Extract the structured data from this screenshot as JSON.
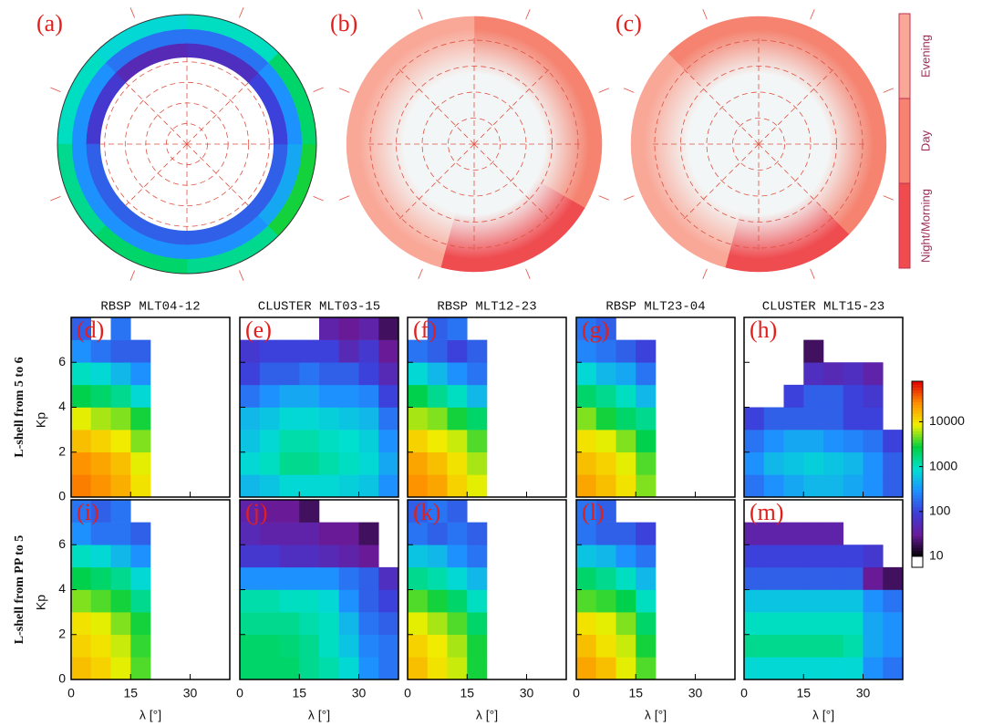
{
  "chart_data": [
    {
      "type": "polar-ring",
      "label": "(a)",
      "values": [
        [
          150,
          300,
          1500
        ],
        [
          150,
          400,
          3000
        ],
        [
          100,
          300,
          2000
        ],
        [
          60,
          200,
          1000
        ],
        [
          50,
          200,
          800
        ],
        [
          80,
          300,
          1000
        ],
        [
          150,
          300,
          1500
        ],
        [
          150,
          300,
          2000
        ]
      ]
    },
    {
      "type": "polar-region",
      "label": "(b)",
      "sectors": [
        {
          "name": "Day",
          "mlt": [
            4,
            12
          ]
        },
        {
          "name": "Evening",
          "mlt": [
            12,
            23
          ]
        },
        {
          "name": "Night/Morning",
          "mlt": [
            23,
            4
          ]
        }
      ]
    },
    {
      "type": "polar-region",
      "label": "(c)",
      "sectors": [
        {
          "name": "Day",
          "mlt": [
            3,
            15
          ]
        },
        {
          "name": "Evening",
          "mlt": [
            15,
            23
          ]
        },
        {
          "name": "Night/Morning",
          "mlt": [
            23,
            3
          ]
        }
      ]
    },
    {
      "type": "category-bar",
      "categories": [
        "Evening",
        "Day",
        "Night/Morning"
      ],
      "colors": [
        "#f9a898",
        "#f58370",
        "#ef4c50"
      ]
    },
    {
      "type": "heatmap",
      "label": "(d)",
      "title": "RBSP MLT04-12",
      "row_label": "L-shell from 5 to 6",
      "ylabel": "Kp",
      "x_bins": [
        0,
        5,
        10,
        15,
        20,
        25,
        30,
        35,
        40
      ],
      "y_bins": [
        0,
        1,
        2,
        3,
        4,
        5,
        6,
        7,
        8
      ],
      "xlim": [
        0,
        40
      ],
      "ylim": [
        0,
        8
      ],
      "xticks": [
        0,
        15,
        30
      ],
      "yticks": [
        0,
        2,
        4,
        6
      ],
      "values": [
        [
          30000,
          25000,
          18000,
          10000,
          null,
          null,
          null,
          null
        ],
        [
          25000,
          20000,
          15000,
          8000,
          null,
          null,
          null,
          null
        ],
        [
          15000,
          12000,
          9000,
          5000,
          null,
          null,
          null,
          null
        ],
        [
          8000,
          6000,
          5000,
          3000,
          null,
          null,
          null,
          null
        ],
        [
          2500,
          2000,
          1500,
          800,
          null,
          null,
          null,
          null
        ],
        [
          1000,
          800,
          500,
          300,
          null,
          null,
          null,
          null
        ],
        [
          300,
          200,
          150,
          150,
          null,
          null,
          null,
          null
        ],
        [
          150,
          null,
          200,
          null,
          null,
          null,
          null,
          null
        ]
      ]
    },
    {
      "type": "heatmap",
      "label": "(e)",
      "title": "CLUSTER MLT03-15",
      "x_bins": [
        0,
        5,
        10,
        15,
        20,
        25,
        30,
        35,
        40
      ],
      "y_bins": [
        0,
        1,
        2,
        3,
        4,
        5,
        6,
        7,
        8
      ],
      "xlim": [
        0,
        40
      ],
      "ylim": [
        0,
        8
      ],
      "xticks": [
        0,
        15,
        30
      ],
      "yticks": [
        0,
        2,
        4,
        6
      ],
      "values": [
        [
          500,
          600,
          800,
          800,
          800,
          700,
          600,
          300
        ],
        [
          800,
          1000,
          1500,
          1500,
          1200,
          1000,
          800,
          400
        ],
        [
          600,
          800,
          1200,
          1200,
          1000,
          900,
          700,
          300
        ],
        [
          500,
          600,
          800,
          800,
          700,
          600,
          500,
          200
        ],
        [
          200,
          300,
          400,
          400,
          300,
          300,
          250,
          100
        ],
        [
          100,
          150,
          150,
          200,
          150,
          150,
          100,
          50
        ],
        [
          80,
          100,
          100,
          100,
          100,
          50,
          80,
          30
        ],
        [
          null,
          null,
          null,
          null,
          40,
          30,
          40,
          20
        ]
      ]
    },
    {
      "type": "heatmap",
      "label": "(f)",
      "title": "RBSP MLT12-23",
      "x_bins": [
        0,
        5,
        10,
        15,
        20,
        25,
        30,
        35,
        40
      ],
      "y_bins": [
        0,
        1,
        2,
        3,
        4,
        5,
        6,
        7,
        8
      ],
      "xlim": [
        0,
        40
      ],
      "ylim": [
        0,
        8
      ],
      "xticks": [
        0,
        15,
        30
      ],
      "yticks": [
        0,
        2,
        4,
        6
      ],
      "values": [
        [
          25000,
          20000,
          12000,
          8000,
          null,
          null,
          null,
          null
        ],
        [
          20000,
          15000,
          10000,
          6000,
          null,
          null,
          null,
          null
        ],
        [
          12000,
          9000,
          7000,
          4000,
          null,
          null,
          null,
          null
        ],
        [
          6000,
          5000,
          3000,
          2000,
          null,
          null,
          null,
          null
        ],
        [
          2500,
          1500,
          1000,
          500,
          null,
          null,
          null,
          null
        ],
        [
          800,
          500,
          300,
          200,
          null,
          null,
          null,
          null
        ],
        [
          200,
          150,
          100,
          150,
          null,
          null,
          null,
          null
        ],
        [
          null,
          150,
          200,
          null,
          null,
          null,
          null,
          null
        ]
      ]
    },
    {
      "type": "heatmap",
      "label": "(g)",
      "title": "RBSP MLT23-04",
      "x_bins": [
        0,
        5,
        10,
        15,
        20,
        25,
        30,
        35,
        40
      ],
      "y_bins": [
        0,
        1,
        2,
        3,
        4,
        5,
        6,
        7,
        8
      ],
      "xlim": [
        0,
        40
      ],
      "ylim": [
        0,
        8
      ],
      "xticks": [
        0,
        15,
        30
      ],
      "yticks": [
        0,
        2,
        4,
        6
      ],
      "values": [
        [
          20000,
          15000,
          10000,
          5000,
          null,
          null,
          null,
          null
        ],
        [
          15000,
          12000,
          8000,
          4000,
          null,
          null,
          null,
          null
        ],
        [
          10000,
          8000,
          5000,
          2500,
          null,
          null,
          null,
          null
        ],
        [
          5000,
          3000,
          2000,
          1500,
          null,
          null,
          null,
          null
        ],
        [
          2000,
          1500,
          1000,
          500,
          null,
          null,
          null,
          null
        ],
        [
          800,
          500,
          400,
          200,
          null,
          null,
          null,
          null
        ],
        [
          250,
          200,
          150,
          100,
          null,
          null,
          null,
          null
        ],
        [
          200,
          150,
          null,
          null,
          null,
          null,
          null,
          null
        ]
      ]
    },
    {
      "type": "heatmap",
      "label": "(h)",
      "title": "CLUSTER MLT15-23",
      "x_bins": [
        0,
        5,
        10,
        15,
        20,
        25,
        30,
        35,
        40
      ],
      "y_bins": [
        0,
        1,
        2,
        3,
        4,
        5,
        6,
        7,
        8
      ],
      "xlim": [
        0,
        40
      ],
      "ylim": [
        0,
        8
      ],
      "xticks": [
        0,
        15,
        30
      ],
      "yticks": [
        0,
        2,
        4,
        6
      ],
      "values": [
        [
          200,
          300,
          400,
          500,
          500,
          400,
          300,
          150
        ],
        [
          300,
          500,
          600,
          700,
          600,
          500,
          300,
          150
        ],
        [
          200,
          300,
          400,
          400,
          300,
          250,
          200,
          100
        ],
        [
          100,
          150,
          150,
          150,
          150,
          100,
          100,
          null
        ],
        [
          null,
          null,
          100,
          150,
          150,
          100,
          80,
          null
        ],
        [
          null,
          null,
          null,
          60,
          50,
          60,
          40,
          null
        ],
        [
          null,
          null,
          null,
          20,
          null,
          null,
          null,
          null
        ],
        [
          null,
          null,
          null,
          null,
          null,
          null,
          null,
          null
        ]
      ]
    },
    {
      "type": "heatmap",
      "label": "(i)",
      "row_label": "L-shell from PP to 5",
      "ylabel": "Kp",
      "xlabel": "λ [°]",
      "x_bins": [
        0,
        5,
        10,
        15,
        20,
        25,
        30,
        35,
        40
      ],
      "y_bins": [
        0,
        1,
        2,
        3,
        4,
        5,
        6,
        7,
        8
      ],
      "xlim": [
        0,
        40
      ],
      "ylim": [
        0,
        8
      ],
      "xticks": [
        0,
        15,
        30
      ],
      "yticks": [
        0,
        2,
        4,
        6
      ],
      "values": [
        [
          15000,
          12000,
          8000,
          4000,
          null,
          null,
          null,
          null
        ],
        [
          12000,
          10000,
          7000,
          3500,
          null,
          null,
          null,
          null
        ],
        [
          10000,
          8000,
          5000,
          3000,
          null,
          null,
          null,
          null
        ],
        [
          5000,
          4000,
          3000,
          1500,
          null,
          null,
          null,
          null
        ],
        [
          2500,
          2000,
          1500,
          800,
          null,
          null,
          null,
          null
        ],
        [
          1000,
          800,
          500,
          300,
          null,
          null,
          null,
          null
        ],
        [
          300,
          200,
          200,
          150,
          null,
          null,
          null,
          null
        ],
        [
          200,
          150,
          200,
          null,
          null,
          null,
          null,
          null
        ]
      ]
    },
    {
      "type": "heatmap",
      "label": "(j)",
      "xlabel": "λ [°]",
      "x_bins": [
        0,
        5,
        10,
        15,
        20,
        25,
        30,
        35,
        40
      ],
      "y_bins": [
        0,
        1,
        2,
        3,
        4,
        5,
        6,
        7,
        8
      ],
      "xlim": [
        0,
        40
      ],
      "ylim": [
        0,
        8
      ],
      "xticks": [
        0,
        15,
        30
      ],
      "yticks": [
        0,
        2,
        4,
        6
      ],
      "values": [
        [
          2000,
          2000,
          2000,
          1500,
          1200,
          800,
          300,
          200
        ],
        [
          2000,
          2000,
          1800,
          1500,
          1000,
          600,
          250,
          200
        ],
        [
          1500,
          1500,
          1500,
          1200,
          1000,
          500,
          200,
          150
        ],
        [
          1200,
          1200,
          1000,
          1000,
          800,
          300,
          150,
          100
        ],
        [
          300,
          300,
          300,
          300,
          300,
          200,
          150,
          60
        ],
        [
          80,
          80,
          60,
          60,
          50,
          40,
          30,
          null
        ],
        [
          50,
          40,
          40,
          40,
          30,
          30,
          20,
          null
        ],
        [
          40,
          30,
          30,
          20,
          null,
          null,
          null,
          null
        ]
      ]
    },
    {
      "type": "heatmap",
      "label": "(k)",
      "xlabel": "λ [°]",
      "x_bins": [
        0,
        5,
        10,
        15,
        20,
        25,
        30,
        35,
        40
      ],
      "y_bins": [
        0,
        1,
        2,
        3,
        4,
        5,
        6,
        7,
        8
      ],
      "xlim": [
        0,
        40
      ],
      "ylim": [
        0,
        8
      ],
      "xticks": [
        0,
        15,
        30
      ],
      "yticks": [
        0,
        2,
        4,
        6
      ],
      "values": [
        [
          15000,
          10000,
          7000,
          3000,
          null,
          null,
          null,
          null
        ],
        [
          12000,
          9000,
          6000,
          3000,
          null,
          null,
          null,
          null
        ],
        [
          8000,
          6000,
          4000,
          2000,
          null,
          null,
          null,
          null
        ],
        [
          4000,
          3000,
          2000,
          1000,
          null,
          null,
          null,
          null
        ],
        [
          1500,
          1200,
          800,
          500,
          null,
          null,
          null,
          null
        ],
        [
          600,
          500,
          300,
          200,
          null,
          null,
          null,
          null
        ],
        [
          200,
          150,
          200,
          150,
          null,
          null,
          null,
          null
        ],
        [
          150,
          200,
          150,
          null,
          null,
          null,
          null,
          null
        ]
      ]
    },
    {
      "type": "heatmap",
      "label": "(l)",
      "xlabel": "λ [°]",
      "x_bins": [
        0,
        5,
        10,
        15,
        20,
        25,
        30,
        35,
        40
      ],
      "y_bins": [
        0,
        1,
        2,
        3,
        4,
        5,
        6,
        7,
        8
      ],
      "xlim": [
        0,
        40
      ],
      "ylim": [
        0,
        8
      ],
      "xticks": [
        0,
        15,
        30
      ],
      "yticks": [
        0,
        2,
        4,
        6
      ],
      "values": [
        [
          20000,
          15000,
          8000,
          4000,
          null,
          null,
          null,
          null
        ],
        [
          15000,
          10000,
          7000,
          3000,
          null,
          null,
          null,
          null
        ],
        [
          10000,
          8000,
          5000,
          2000,
          null,
          null,
          null,
          null
        ],
        [
          4000,
          3500,
          2500,
          1000,
          null,
          null,
          null,
          null
        ],
        [
          2000,
          1500,
          1000,
          500,
          null,
          null,
          null,
          null
        ],
        [
          600,
          500,
          300,
          200,
          null,
          null,
          null,
          null
        ],
        [
          200,
          150,
          150,
          100,
          null,
          null,
          null,
          null
        ],
        [
          200,
          150,
          null,
          null,
          null,
          null,
          null,
          null
        ]
      ]
    },
    {
      "type": "heatmap",
      "label": "(m)",
      "xlabel": "λ [°]",
      "x_bins": [
        0,
        5,
        10,
        15,
        20,
        25,
        30,
        35,
        40
      ],
      "y_bins": [
        0,
        1,
        2,
        3,
        4,
        5,
        6,
        7,
        8
      ],
      "xlim": [
        0,
        40
      ],
      "ylim": [
        0,
        8
      ],
      "xticks": [
        0,
        15,
        30
      ],
      "yticks": [
        0,
        2,
        4,
        6
      ],
      "values": [
        [
          800,
          800,
          800,
          800,
          800,
          800,
          300,
          200
        ],
        [
          1500,
          1500,
          1500,
          1500,
          1500,
          1200,
          400,
          300
        ],
        [
          1000,
          1000,
          1000,
          1000,
          1000,
          1000,
          400,
          300
        ],
        [
          600,
          600,
          600,
          600,
          600,
          600,
          300,
          200
        ],
        [
          150,
          150,
          150,
          150,
          150,
          150,
          30,
          20
        ],
        [
          100,
          100,
          100,
          100,
          100,
          100,
          80,
          null
        ],
        [
          40,
          40,
          40,
          40,
          40,
          null,
          null,
          null
        ],
        [
          null,
          null,
          null,
          null,
          null,
          null,
          null,
          null
        ]
      ]
    },
    {
      "type": "colorbar",
      "scale": "log",
      "ylim": [
        10,
        80000
      ],
      "yticks": [
        10,
        100,
        1000,
        10000
      ],
      "colormap": [
        "#000000",
        "#6a1b9a",
        "#3d3dd8",
        "#1e90ff",
        "#00e0d0",
        "#00d040",
        "#f0f000",
        "#ff9000",
        "#e00000"
      ]
    }
  ]
}
